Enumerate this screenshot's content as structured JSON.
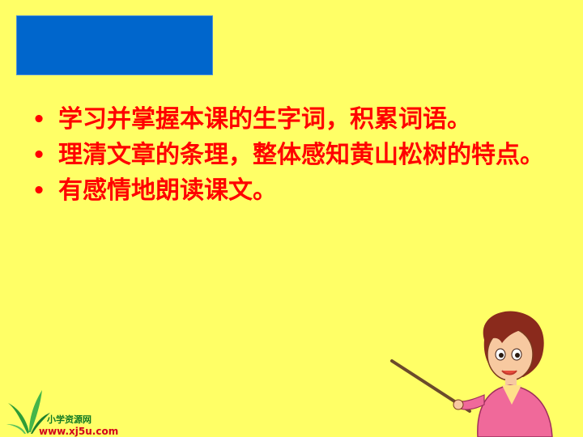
{
  "slide": {
    "bullets": [
      "学习并掌握本课的生字词，积累词语。",
      "理清文章的条理，整体感知黄山松树的特点。",
      "有感情地朗读课文。"
    ],
    "bullet_glyph": "•"
  },
  "logo": {
    "name": "小学资源网",
    "url": "www.xj5u.com"
  },
  "colors": {
    "background": "#FFFF66",
    "title_box": "#0066CC",
    "text": "#FF0000"
  },
  "icons": {
    "logo": "leaf-logo-icon",
    "teacher": "teacher-with-pointer-illustration"
  }
}
